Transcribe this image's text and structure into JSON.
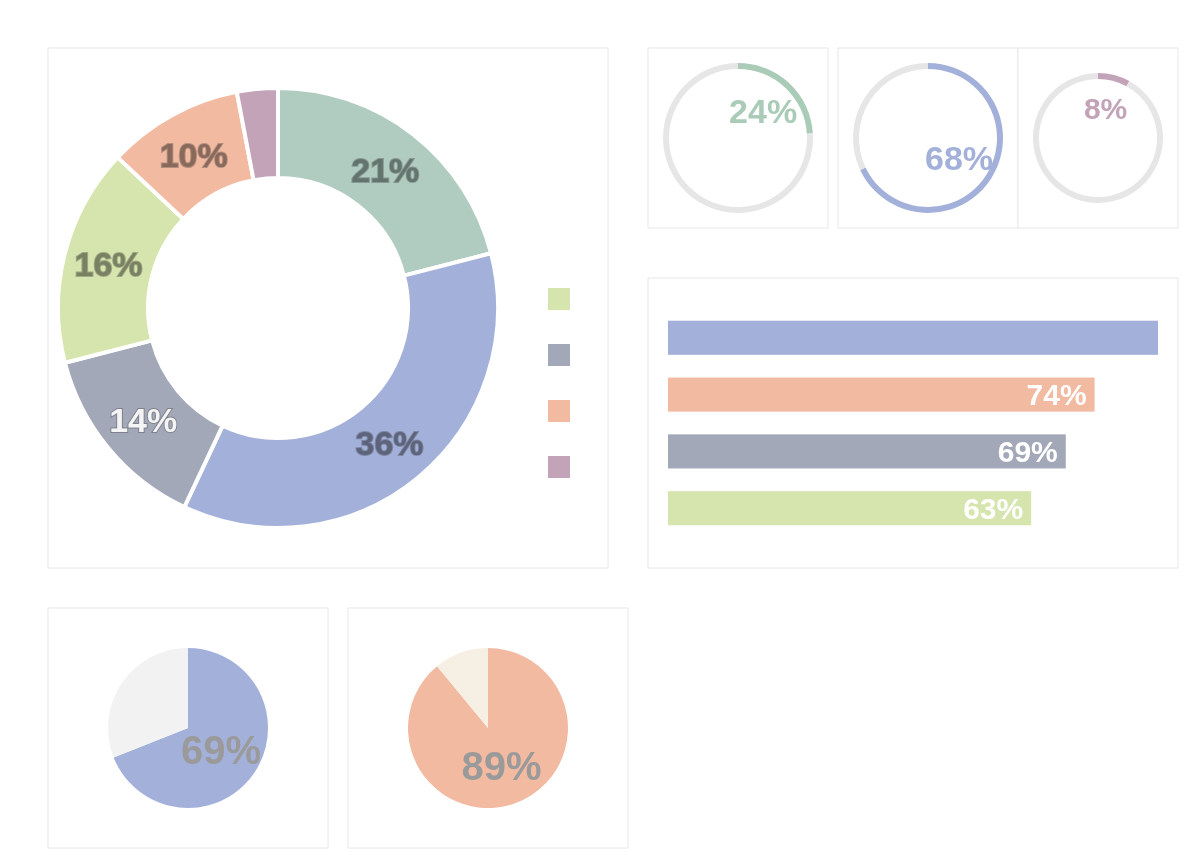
{
  "chart_data": [
    {
      "type": "donut",
      "categories": [
        null,
        null,
        null,
        null,
        null,
        null
      ],
      "values": [
        21,
        36,
        14,
        16,
        10,
        3
      ],
      "colors": [
        "#b0cbc0",
        "#a3b0da",
        "#a3a8b8",
        "#d6e4ae",
        "#f2baa1",
        "#c3a3b8"
      ],
      "value_labels": [
        "21%",
        "36%",
        "14%",
        "16%",
        "10%",
        null
      ]
    },
    {
      "type": "donut",
      "categories": [
        null,
        null
      ],
      "values": [
        24,
        76
      ],
      "colors": [
        "#a9cbb8",
        "#e6e6e6"
      ],
      "value_labels": [
        "24%",
        null
      ]
    },
    {
      "type": "donut",
      "categories": [
        null,
        null
      ],
      "values": [
        68,
        32
      ],
      "colors": [
        "#a3b0da",
        "#e6e6e6"
      ],
      "value_labels": [
        "68%",
        null
      ]
    },
    {
      "type": "donut",
      "categories": [
        null,
        null
      ],
      "values": [
        8,
        92
      ],
      "colors": [
        "#c3a3b8",
        "#e6e6e6"
      ],
      "value_labels": [
        "8%",
        null
      ]
    },
    {
      "type": "bar",
      "orientation": "horizontal",
      "categories": [
        null,
        null,
        null,
        null
      ],
      "values": [
        85,
        74,
        69,
        63
      ],
      "colors": [
        "#a3b0da",
        "#f2baa1",
        "#a3a8b8",
        "#d6e4ae"
      ],
      "value_labels": [
        null,
        "74%",
        "69%",
        "63%"
      ]
    },
    {
      "type": "pie",
      "categories": [
        null,
        null
      ],
      "values": [
        69,
        31
      ],
      "colors": [
        "#a3b0da",
        "#f2f2f2"
      ],
      "value_labels": [
        "69%",
        null
      ]
    },
    {
      "type": "pie",
      "categories": [
        null,
        null
      ],
      "values": [
        89,
        11
      ],
      "colors": [
        "#f2baa1",
        "#f5efe4"
      ],
      "value_labels": [
        "89%",
        null
      ]
    }
  ]
}
